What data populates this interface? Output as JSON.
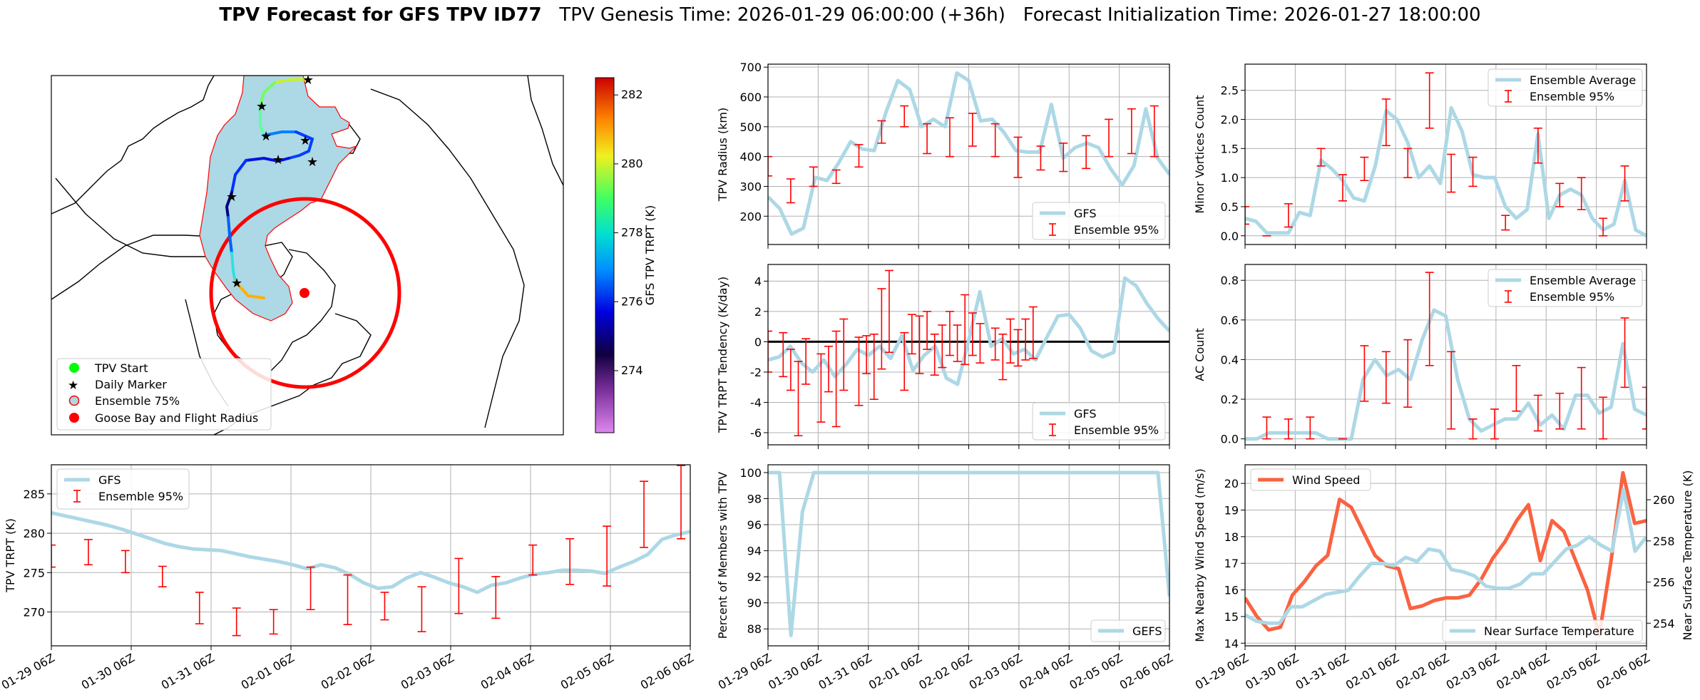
{
  "figure": {
    "title_bold": "TPV Forecast for GFS TPV ID77",
    "title_rest": "   TPV Genesis Time: 2026-01-29 06:00:00 (+36h)   Forecast Initialization Time: 2026-01-27 18:00:00"
  },
  "colors": {
    "gfs": "#add8e6",
    "ensemble": "#ff0000",
    "wind": "#fa6240",
    "temp_axis": "#4169e1",
    "wind_axis": "#fa6240",
    "grid": "#b0b0b0"
  },
  "time_ticks": [
    "01-29 06Z",
    "01-30 06Z",
    "01-31 06Z",
    "02-01 06Z",
    "02-02 06Z",
    "02-03 06Z",
    "02-04 06Z",
    "02-05 06Z",
    "02-06 06Z"
  ],
  "map": {
    "colorbar_label": "GFS TPV TRPT (K)",
    "colorbar_ticks": [
      "274",
      "276",
      "278",
      "280",
      "282"
    ],
    "legend": [
      "TPV Start",
      "Daily Marker",
      "Ensemble 75%",
      "Goose Bay and Flight Radius"
    ]
  },
  "chart_data": [
    {
      "id": "trpt",
      "type": "line",
      "ylabel": "TPV TRPT (K)",
      "ylim": [
        265.7,
        288.7
      ],
      "yticks": [
        270,
        275,
        280,
        285
      ],
      "legend": [
        "GFS",
        "Ensemble 95%"
      ],
      "legend_pos": "upper-left",
      "x_start": "2026-01-29 06Z",
      "x_step_hours": 6,
      "series": [
        {
          "name": "GFS",
          "values": [
            282.6,
            282.2,
            281.8,
            281.4,
            281.0,
            280.5,
            279.9,
            279.3,
            278.7,
            278.3,
            278.0,
            277.9,
            277.8,
            277.4,
            277.0,
            276.7,
            276.4,
            276.0,
            275.5,
            276.0,
            275.6,
            274.8,
            273.7,
            273.0,
            273.2,
            274.3,
            275.0,
            274.4,
            273.7,
            273.2,
            272.5,
            273.4,
            273.7,
            274.3,
            274.8,
            275.0,
            275.3,
            275.3,
            275.2,
            274.9,
            275.7,
            276.4,
            277.3,
            279.2,
            279.8,
            280.2
          ]
        },
        {
          "name": "Ensemble 95%",
          "ranges": [
            [
              0,
              275.7,
              278.5
            ],
            [
              4,
              276.0,
              279.2
            ],
            [
              8,
              275.0,
              277.8
            ],
            [
              12,
              273.2,
              275.8
            ],
            [
              16,
              268.5,
              272.5
            ],
            [
              20,
              267.0,
              270.5
            ],
            [
              24,
              267.2,
              270.3
            ],
            [
              28,
              270.3,
              275.7
            ],
            [
              32,
              268.4,
              274.7
            ],
            [
              36,
              269.0,
              272.5
            ],
            [
              40,
              267.5,
              273.2
            ],
            [
              44,
              269.8,
              276.8
            ],
            [
              48,
              269.2,
              274.5
            ],
            [
              52,
              274.7,
              278.5
            ],
            [
              56,
              273.5,
              279.3
            ],
            [
              60,
              273.3,
              280.9
            ],
            [
              64,
              278.2,
              286.6
            ],
            [
              68,
              279.3,
              288.6
            ]
          ]
        }
      ]
    },
    {
      "id": "radius",
      "type": "line",
      "ylabel": "TPV Radius (km)",
      "ylim": [
        105,
        710
      ],
      "yticks": [
        200,
        300,
        400,
        500,
        600,
        700
      ],
      "legend": [
        "GFS",
        "Ensemble 95%"
      ],
      "legend_pos": "lower-right",
      "series": [
        {
          "name": "GFS",
          "values": [
            265,
            225,
            140,
            160,
            330,
            320,
            380,
            450,
            425,
            420,
            550,
            655,
            625,
            500,
            525,
            500,
            680,
            655,
            520,
            525,
            480,
            420,
            415,
            415,
            575,
            395,
            430,
            445,
            430,
            360,
            305,
            370,
            560,
            395,
            340
          ]
        },
        {
          "name": "Ensemble 95%",
          "ranges": [
            [
              0,
              335,
              400
            ],
            [
              3,
              245,
              325
            ],
            [
              6,
              300,
              365
            ],
            [
              9,
              310,
              355
            ],
            [
              12,
              365,
              440
            ],
            [
              15,
              445,
              520
            ],
            [
              18,
              500,
              570
            ],
            [
              21,
              410,
              510
            ],
            [
              24,
              400,
              530
            ],
            [
              27,
              435,
              545
            ],
            [
              30,
              400,
              510
            ],
            [
              33,
              330,
              465
            ],
            [
              36,
              355,
              435
            ],
            [
              39,
              350,
              445
            ],
            [
              42,
              360,
              470
            ],
            [
              45,
              400,
              525
            ],
            [
              48,
              410,
              560
            ],
            [
              51,
              400,
              570
            ],
            [
              54,
              395,
              530
            ]
          ]
        }
      ]
    },
    {
      "id": "tendency",
      "type": "line",
      "ylabel": "TPV TRPT Tendency (K/day)",
      "ylim": [
        -6.8,
        5.1
      ],
      "yticks": [
        -6,
        -4,
        -2,
        0,
        2,
        4
      ],
      "zero_line": true,
      "legend": [
        "GFS",
        "Ensemble 95%"
      ],
      "legend_pos": "lower-right",
      "series": [
        {
          "name": "GFS",
          "values": [
            -1.2,
            -1.0,
            -0.3,
            -1.4,
            -2.0,
            -1.2,
            -2.3,
            -1.5,
            -0.5,
            -0.9,
            -0.3,
            -1.1,
            0.4,
            -1.9,
            -0.9,
            -0.3,
            -2.4,
            -2.8,
            0.1,
            3.3,
            -0.3,
            0.2,
            -0.8,
            -0.5,
            -1.2,
            0.3,
            1.7,
            1.8,
            0.9,
            -0.6,
            -1.0,
            -0.7,
            4.2,
            3.7,
            2.5,
            1.5,
            0.7
          ]
        },
        {
          "name": "Ensemble 95%",
          "ranges": [
            [
              0,
              -2.0,
              0.7
            ],
            [
              2,
              -2.3,
              0.6
            ],
            [
              3,
              -3.2,
              -0.5
            ],
            [
              4,
              -6.2,
              -1.3
            ],
            [
              5,
              -2.8,
              0.2
            ],
            [
              7,
              -5.3,
              -0.8
            ],
            [
              8,
              -3.3,
              -0.3
            ],
            [
              9,
              -5.6,
              0.7
            ],
            [
              10,
              -3.2,
              1.5
            ],
            [
              12,
              -4.2,
              0.3
            ],
            [
              13,
              -2.1,
              0.4
            ],
            [
              14,
              -3.8,
              0.5
            ],
            [
              15,
              -1.8,
              3.5
            ],
            [
              16,
              -0.7,
              4.7
            ],
            [
              18,
              -3.2,
              0.6
            ],
            [
              19,
              -0.8,
              1.8
            ],
            [
              20,
              -2.1,
              1.7
            ],
            [
              21,
              -0.5,
              2.0
            ],
            [
              22,
              -2.2,
              0.5
            ],
            [
              23,
              -1.7,
              1.1
            ],
            [
              24,
              -0.9,
              2.0
            ],
            [
              25,
              -1.3,
              1.1
            ],
            [
              26,
              -1.5,
              3.1
            ],
            [
              27,
              -0.9,
              1.9
            ],
            [
              28,
              -1.4,
              1.2
            ],
            [
              30,
              -1.2,
              0.9
            ],
            [
              31,
              -2.5,
              0.5
            ],
            [
              32,
              -1.4,
              1.5
            ],
            [
              33,
              -1.6,
              0.8
            ],
            [
              34,
              -1.2,
              1.5
            ],
            [
              35,
              -1.1,
              2.3
            ]
          ]
        }
      ]
    },
    {
      "id": "percent",
      "type": "line",
      "ylabel": "Percent of Members with TPV",
      "ylim": [
        86.7,
        100.6
      ],
      "yticks": [
        88,
        90,
        92,
        94,
        96,
        98,
        100
      ],
      "legend": [
        "GEFS"
      ],
      "legend_pos": "lower-right",
      "series": [
        {
          "name": "GEFS",
          "values": [
            100,
            100,
            87.5,
            97,
            100,
            100,
            100,
            100,
            100,
            100,
            100,
            100,
            100,
            100,
            100,
            100,
            100,
            100,
            100,
            100,
            100,
            100,
            100,
            100,
            100,
            100,
            100,
            100,
            100,
            100,
            100,
            100,
            100,
            100,
            100,
            90.5
          ]
        }
      ]
    },
    {
      "id": "minor",
      "type": "line",
      "ylabel": "Minor Vortices Count",
      "ylim": [
        -0.15,
        2.95
      ],
      "yticks": [
        0.0,
        0.5,
        1.0,
        1.5,
        2.0,
        2.5
      ],
      "legend": [
        "Ensemble Average",
        "Ensemble 95%"
      ],
      "legend_pos": "upper-right",
      "series": [
        {
          "name": "Ensemble Average",
          "values": [
            0.3,
            0.25,
            0.05,
            0.05,
            0.05,
            0.4,
            0.35,
            1.3,
            1.15,
            0.95,
            0.65,
            0.6,
            1.2,
            2.15,
            2.0,
            1.6,
            1.0,
            1.2,
            0.9,
            2.2,
            1.8,
            1.05,
            1.0,
            1.0,
            0.5,
            0.3,
            0.45,
            1.75,
            0.3,
            0.7,
            0.8,
            0.7,
            0.3,
            0.1,
            0.2,
            0.95,
            0.1,
            0.0
          ]
        },
        {
          "name": "Ensemble 95%",
          "ranges": [
            [
              0,
              0.2,
              0.5
            ],
            [
              2,
              0.0,
              0.0
            ],
            [
              4,
              0.15,
              0.55
            ],
            [
              7,
              1.2,
              1.5
            ],
            [
              9,
              0.6,
              1.05
            ],
            [
              11,
              0.95,
              1.35
            ],
            [
              13,
              1.55,
              2.35
            ],
            [
              15,
              1.0,
              1.5
            ],
            [
              17,
              1.85,
              2.8
            ],
            [
              19,
              0.75,
              1.4
            ],
            [
              21,
              0.85,
              1.35
            ],
            [
              24,
              0.1,
              0.35
            ],
            [
              27,
              1.25,
              1.85
            ],
            [
              29,
              0.5,
              0.9
            ],
            [
              31,
              0.45,
              1.0
            ],
            [
              33,
              0.0,
              0.3
            ],
            [
              35,
              0.6,
              1.2
            ]
          ]
        }
      ]
    },
    {
      "id": "ac",
      "type": "line",
      "ylabel": "AC Count",
      "ylim": [
        -0.03,
        0.88
      ],
      "yticks": [
        0.0,
        0.2,
        0.4,
        0.6,
        0.8
      ],
      "legend": [
        "Ensemble Average",
        "Ensemble 95%"
      ],
      "legend_pos": "upper-right",
      "series": [
        {
          "name": "Ensemble Average",
          "values": [
            0.0,
            0.0,
            0.03,
            0.03,
            0.03,
            0.03,
            0.03,
            0.0,
            0.0,
            0.0,
            0.3,
            0.4,
            0.32,
            0.35,
            0.3,
            0.5,
            0.65,
            0.62,
            0.3,
            0.1,
            0.04,
            0.07,
            0.1,
            0.1,
            0.18,
            0.07,
            0.12,
            0.05,
            0.22,
            0.22,
            0.13,
            0.16,
            0.48,
            0.15,
            0.12
          ]
        },
        {
          "name": "Ensemble 95%",
          "ranges": [
            [
              2,
              0.0,
              0.11
            ],
            [
              4,
              0.0,
              0.1
            ],
            [
              6,
              0.0,
              0.11
            ],
            [
              9,
              0.0,
              0.0
            ],
            [
              11,
              0.19,
              0.47
            ],
            [
              13,
              0.18,
              0.44
            ],
            [
              15,
              0.16,
              0.5
            ],
            [
              17,
              0.37,
              0.84
            ],
            [
              19,
              0.05,
              0.44
            ],
            [
              21,
              0.0,
              0.1
            ],
            [
              23,
              0.0,
              0.15
            ],
            [
              25,
              0.14,
              0.37
            ],
            [
              27,
              0.04,
              0.22
            ],
            [
              29,
              0.05,
              0.23
            ],
            [
              31,
              0.05,
              0.36
            ],
            [
              33,
              0.0,
              0.21
            ],
            [
              35,
              0.26,
              0.61
            ],
            [
              37,
              0.05,
              0.26
            ]
          ]
        }
      ]
    },
    {
      "id": "wind_temp",
      "type": "line",
      "ylabel": "Max Nearby Wind Speed (m/s)",
      "ylim": [
        13.9,
        20.7
      ],
      "yticks": [
        14,
        15,
        16,
        17,
        18,
        19,
        20
      ],
      "ylabel_right": "Near Surface Temperature (K)",
      "ylim_right": [
        252.9,
        261.7
      ],
      "yticks_right": [
        254,
        256,
        258,
        260
      ],
      "legend": [
        "Wind Speed",
        "Near Surface Temperature"
      ],
      "series": [
        {
          "name": "Wind Speed",
          "axis": "left",
          "values": [
            15.7,
            15.0,
            14.5,
            14.6,
            15.8,
            16.3,
            16.9,
            17.3,
            19.4,
            19.1,
            18.2,
            17.3,
            16.9,
            16.8,
            15.3,
            15.4,
            15.6,
            15.7,
            15.7,
            15.8,
            16.4,
            17.2,
            17.8,
            18.6,
            19.2,
            17.1,
            18.6,
            18.2,
            17.1,
            16.0,
            14.3,
            17.1,
            20.4,
            18.5,
            18.6
          ]
        },
        {
          "name": "Near Surface Temperature",
          "axis": "right",
          "values": [
            254.4,
            254.1,
            254.0,
            254.0,
            254.8,
            254.8,
            255.1,
            255.4,
            255.5,
            255.6,
            256.3,
            256.9,
            256.9,
            256.8,
            257.2,
            257.0,
            257.6,
            257.5,
            256.6,
            256.5,
            256.3,
            255.8,
            255.7,
            255.7,
            255.9,
            256.4,
            256.4,
            257.0,
            257.6,
            257.8,
            258.2,
            257.8,
            257.5,
            260.5,
            257.5,
            258.2
          ]
        }
      ]
    }
  ]
}
